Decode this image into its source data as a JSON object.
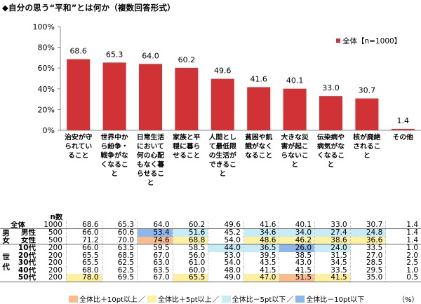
{
  "title": "◆自分の思う“平和”とは何か（複数回答形式）",
  "chart_data": {
    "type": "bar",
    "y_ticks": [
      "0%",
      "20%",
      "40%",
      "60%",
      "80%",
      "100%"
    ],
    "ylim": [
      0,
      100
    ],
    "legend": "全体【n=1000】",
    "series_color": "#d03235",
    "categories": [
      "治安が守られていること",
      "世界中から紛争・戦争がなくなること",
      "日常生活において何の心配もなく暮らせること",
      "家族と平穏に暮らせること",
      "人間として最低限の生活ができること",
      "貧困や飢餓がなくなること",
      "大きな災害が起こらないこと",
      "伝染病や病気がなくなること",
      "核が廃絶されること",
      "その他"
    ],
    "values": [
      68.6,
      65.3,
      64.0,
      60.2,
      49.6,
      41.6,
      40.1,
      33.0,
      30.7,
      1.4
    ],
    "value_labels": [
      "68.6",
      "65.3",
      "64.0",
      "60.2",
      "49.6",
      "41.6",
      "40.1",
      "33.0",
      "30.7",
      "1.4"
    ]
  },
  "table": {
    "n_header": "n数",
    "groups": [
      {
        "label": "全体",
        "rows": [
          {
            "sub": "全体",
            "n": "1000",
            "cells": [
              "68.6",
              "65.3",
              "64.0",
              "60.2",
              "49.6",
              "41.6",
              "40.1",
              "33.0",
              "30.7",
              "1.4"
            ],
            "hl": [
              "",
              "",
              "",
              "",
              "",
              "",
              "",
              "",
              "",
              ""
            ]
          }
        ]
      },
      {
        "label": "男女",
        "rows": [
          {
            "sub": "男性",
            "n": "500",
            "cells": [
              "66.0",
              "60.6",
              "53.4",
              "51.6",
              "45.2",
              "34.6",
              "34.0",
              "27.4",
              "24.8",
              "1.4"
            ],
            "hl": [
              "",
              "",
              "m10",
              "m5",
              "",
              "m5",
              "m5",
              "m5",
              "m5",
              ""
            ]
          },
          {
            "sub": "女性",
            "n": "500",
            "cells": [
              "71.2",
              "70.0",
              "74.6",
              "68.8",
              "54.0",
              "48.6",
              "46.2",
              "38.6",
              "36.6",
              "1.4"
            ],
            "hl": [
              "",
              "",
              "p10",
              "p5",
              "",
              "p5",
              "p5",
              "p5",
              "p5",
              ""
            ]
          }
        ]
      },
      {
        "label": "世代",
        "rows": [
          {
            "sub": "10代",
            "n": "200",
            "cells": [
              "66.0",
              "63.5",
              "59.5",
              "58.5",
              "44.0",
              "36.5",
              "26.0",
              "24.0",
              "33.5",
              "1.0"
            ],
            "hl": [
              "",
              "",
              "",
              "",
              "m5",
              "m5",
              "m10",
              "m5",
              "",
              ""
            ]
          },
          {
            "sub": "20代",
            "n": "200",
            "cells": [
              "65.5",
              "68.5",
              "67.0",
              "56.0",
              "53.0",
              "39.5",
              "38.5",
              "31.5",
              "27.0",
              "2.0"
            ],
            "hl": [
              "",
              "",
              "",
              "",
              "",
              "",
              "",
              "",
              "",
              ""
            ]
          },
          {
            "sub": "30代",
            "n": "200",
            "cells": [
              "65.5",
              "62.5",
              "63.0",
              "61.0",
              "54.0",
              "43.5",
              "43.0",
              "34.5",
              "28.5",
              "2.5"
            ],
            "hl": [
              "",
              "",
              "",
              "",
              "",
              "",
              "",
              "",
              "",
              ""
            ]
          },
          {
            "sub": "40代",
            "n": "200",
            "cells": [
              "68.0",
              "62.5",
              "63.5",
              "60.0",
              "48.0",
              "41.5",
              "41.5",
              "33.5",
              "29.5",
              "1.0"
            ],
            "hl": [
              "",
              "",
              "",
              "",
              "",
              "",
              "",
              "",
              "",
              ""
            ]
          },
          {
            "sub": "50代",
            "n": "200",
            "cells": [
              "78.0",
              "69.5",
              "67.0",
              "65.5",
              "49.0",
              "47.0",
              "51.5",
              "41.5",
              "35.0",
              "0.5"
            ],
            "hl": [
              "p5",
              "",
              "",
              "p5",
              "",
              "p5",
              "p10",
              "p5",
              "",
              ""
            ]
          }
        ]
      }
    ]
  },
  "highlight_colors": {
    "p10": "#f9bc8f",
    "p5": "#fdf0a0",
    "m5": "#c8ecf7",
    "m10": "#8db7ea"
  },
  "legend_items": [
    {
      "key": "p10",
      "label": "全体比＋10pt以上"
    },
    {
      "key": "p5",
      "label": "全体比＋5pt以上"
    },
    {
      "key": "m5",
      "label": "全体比－5pt以下"
    },
    {
      "key": "m10",
      "label": "全体比－10pt以下"
    }
  ],
  "legend_separator": "／",
  "unit": "（%）"
}
